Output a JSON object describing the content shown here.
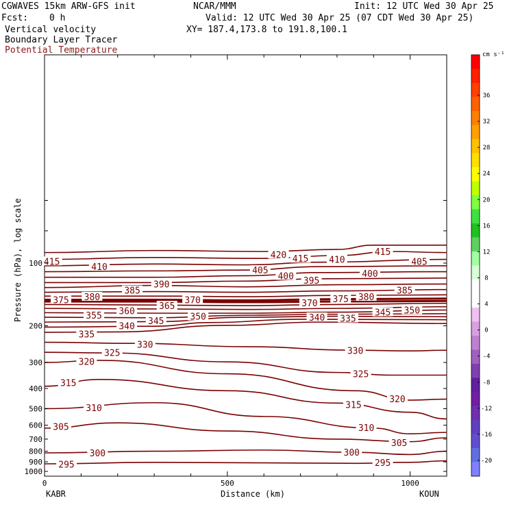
{
  "header": {
    "model": "CGWAVES 15km ARW-GFS init",
    "org": "NCAR/MMM",
    "init": "Init: 12 UTC Wed 30 Apr 25",
    "fcst_label": "Fcst:",
    "fcst_value": "0 h",
    "valid": "Valid: 12 UTC Wed 30 Apr 25 (07 CDT Wed 30 Apr 25)",
    "field1": "Vertical velocity",
    "xy": "XY= 187.4,173.8 to 191.8,100.1",
    "field2": "Boundary Layer Tracer",
    "field3": "Potential Temperature"
  },
  "colors": {
    "contour": "#7a0000",
    "field3_text": "#8b1a1a"
  },
  "chart_data": {
    "type": "contour",
    "xlabel": "Distance (km)",
    "ylabel": "Pressure (hPa), log scale",
    "x_ticks": [
      "0",
      "500",
      "1000"
    ],
    "x_tick_values": [
      0,
      500,
      1000
    ],
    "y_ticks": [
      "100",
      "200",
      "300",
      "400",
      "500",
      "600",
      "700",
      "800",
      "900",
      "1000"
    ],
    "y_tick_values": [
      100,
      200,
      300,
      400,
      500,
      600,
      700,
      800,
      900,
      1000
    ],
    "y_scale": "log",
    "xlim": [
      0,
      1100
    ],
    "left_station": "KABR",
    "right_station": "KOUN",
    "colorbar": {
      "unit": "cm s⁻¹",
      "labels": [
        "36",
        "32",
        "28",
        "24",
        "20",
        "16",
        "12",
        "8",
        "4",
        "0",
        "-4",
        "-8",
        "-12",
        "-16",
        "-20"
      ],
      "colors": [
        "#ff0000",
        "#ff2000",
        "#ff4000",
        "#ff6000",
        "#ff8000",
        "#ffa000",
        "#ffc000",
        "#ffe000",
        "#ffff00",
        "#c0ff00",
        "#80ff40",
        "#40e040",
        "#20c020",
        "#60d060",
        "#a0ffa0",
        "#d8ffd8",
        "#ffffff",
        "#ffffff",
        "#f0c0f0",
        "#d8a0e0",
        "#c080d0",
        "#a060c0",
        "#8040b0",
        "#6020a0",
        "#7020a0",
        "#7030b0",
        "#6040c0",
        "#6050d0",
        "#6070e0",
        "#8080ff"
      ]
    },
    "contour_levels": [
      "295",
      "300",
      "305",
      "310",
      "315",
      "320",
      "325",
      "330",
      "335",
      "340",
      "345",
      "350",
      "355",
      "360",
      "365",
      "370",
      "375",
      "380",
      "385",
      "390",
      "395",
      "400",
      "405",
      "410",
      "415",
      "420"
    ],
    "labels": [
      {
        "text": "415",
        "x": 20,
        "p": 98
      },
      {
        "text": "410",
        "x": 150,
        "p": 104
      },
      {
        "text": "420",
        "x": 640,
        "p": 91
      },
      {
        "text": "415",
        "x": 700,
        "p": 95
      },
      {
        "text": "410",
        "x": 800,
        "p": 96
      },
      {
        "text": "415",
        "x": 925,
        "p": 88
      },
      {
        "text": "405",
        "x": 590,
        "p": 108
      },
      {
        "text": "400",
        "x": 660,
        "p": 115
      },
      {
        "text": "395",
        "x": 730,
        "p": 121
      },
      {
        "text": "400",
        "x": 890,
        "p": 112
      },
      {
        "text": "405",
        "x": 1025,
        "p": 98
      },
      {
        "text": "390",
        "x": 320,
        "p": 126
      },
      {
        "text": "385",
        "x": 240,
        "p": 135
      },
      {
        "text": "385",
        "x": 985,
        "p": 135
      },
      {
        "text": "380",
        "x": 130,
        "p": 145
      },
      {
        "text": "380",
        "x": 880,
        "p": 145
      },
      {
        "text": "375",
        "x": 45,
        "p": 150
      },
      {
        "text": "370",
        "x": 405,
        "p": 150
      },
      {
        "text": "370",
        "x": 725,
        "p": 155
      },
      {
        "text": "375",
        "x": 810,
        "p": 148
      },
      {
        "text": "365",
        "x": 335,
        "p": 160
      },
      {
        "text": "360",
        "x": 225,
        "p": 169
      },
      {
        "text": "355",
        "x": 135,
        "p": 178
      },
      {
        "text": "350",
        "x": 420,
        "p": 180
      },
      {
        "text": "345",
        "x": 305,
        "p": 189
      },
      {
        "text": "345",
        "x": 925,
        "p": 172
      },
      {
        "text": "350",
        "x": 1005,
        "p": 168
      },
      {
        "text": "340",
        "x": 225,
        "p": 200
      },
      {
        "text": "340",
        "x": 745,
        "p": 182
      },
      {
        "text": "335",
        "x": 830,
        "p": 184
      },
      {
        "text": "335",
        "x": 115,
        "p": 219
      },
      {
        "text": "330",
        "x": 275,
        "p": 245
      },
      {
        "text": "330",
        "x": 850,
        "p": 263
      },
      {
        "text": "325",
        "x": 185,
        "p": 269
      },
      {
        "text": "325",
        "x": 865,
        "p": 340
      },
      {
        "text": "320",
        "x": 115,
        "p": 297
      },
      {
        "text": "320",
        "x": 965,
        "p": 448
      },
      {
        "text": "315",
        "x": 65,
        "p": 375
      },
      {
        "text": "315",
        "x": 845,
        "p": 478
      },
      {
        "text": "310",
        "x": 135,
        "p": 495
      },
      {
        "text": "310",
        "x": 880,
        "p": 617
      },
      {
        "text": "305",
        "x": 45,
        "p": 610
      },
      {
        "text": "305",
        "x": 970,
        "p": 727
      },
      {
        "text": "300",
        "x": 145,
        "p": 815
      },
      {
        "text": "300",
        "x": 840,
        "p": 810
      },
      {
        "text": "295",
        "x": 60,
        "p": 925
      },
      {
        "text": "295",
        "x": 925,
        "p": 905
      }
    ],
    "contours": [
      {
        "level": "420",
        "pts": [
          [
            0,
            89
          ],
          [
            300,
            87
          ],
          [
            600,
            88
          ],
          [
            800,
            86
          ],
          [
            900,
            82
          ],
          [
            1100,
            82
          ]
        ]
      },
      {
        "level": "415",
        "pts": [
          [
            0,
            96
          ],
          [
            300,
            94
          ],
          [
            600,
            95
          ],
          [
            800,
            92
          ],
          [
            950,
            88
          ],
          [
            1100,
            89
          ]
        ]
      },
      {
        "level": "410",
        "pts": [
          [
            0,
            103
          ],
          [
            300,
            101
          ],
          [
            550,
            102
          ],
          [
            750,
            99
          ],
          [
            1100,
            96
          ]
        ]
      },
      {
        "level": "405",
        "pts": [
          [
            0,
            110
          ],
          [
            300,
            109
          ],
          [
            550,
            108
          ],
          [
            750,
            104
          ],
          [
            1100,
            103
          ]
        ]
      },
      {
        "level": "400",
        "pts": [
          [
            0,
            117
          ],
          [
            300,
            117
          ],
          [
            550,
            115
          ],
          [
            750,
            111
          ],
          [
            1100,
            110
          ]
        ]
      },
      {
        "level": "395",
        "pts": [
          [
            0,
            124
          ],
          [
            300,
            124
          ],
          [
            550,
            122
          ],
          [
            750,
            119
          ],
          [
            1100,
            118
          ]
        ]
      },
      {
        "level": "390",
        "pts": [
          [
            0,
            131
          ],
          [
            300,
            128
          ],
          [
            550,
            130
          ],
          [
            800,
            127
          ],
          [
            1100,
            126
          ]
        ]
      },
      {
        "level": "385",
        "pts": [
          [
            0,
            138
          ],
          [
            300,
            137
          ],
          [
            550,
            138
          ],
          [
            800,
            136
          ],
          [
            1100,
            134
          ]
        ]
      },
      {
        "level": "380",
        "pts": [
          [
            0,
            144
          ],
          [
            300,
            144
          ],
          [
            550,
            145
          ],
          [
            800,
            143
          ],
          [
            1100,
            142
          ]
        ]
      },
      {
        "level": "375",
        "pts": [
          [
            0,
            150
          ],
          [
            300,
            150
          ],
          [
            550,
            151
          ],
          [
            800,
            149
          ],
          [
            1100,
            148
          ]
        ]
      },
      {
        "level": "370",
        "pts": [
          [
            0,
            153
          ],
          [
            300,
            153
          ],
          [
            550,
            154
          ],
          [
            800,
            153
          ],
          [
            1100,
            152
          ]
        ]
      },
      {
        "level": "365",
        "pts": [
          [
            0,
            158
          ],
          [
            300,
            159
          ],
          [
            550,
            160
          ],
          [
            800,
            158
          ],
          [
            1100,
            156
          ]
        ]
      },
      {
        "level": "360",
        "pts": [
          [
            0,
            165
          ],
          [
            300,
            166
          ],
          [
            550,
            167
          ],
          [
            800,
            165
          ],
          [
            1100,
            162
          ]
        ]
      },
      {
        "level": "355",
        "pts": [
          [
            0,
            173
          ],
          [
            300,
            174
          ],
          [
            550,
            174
          ],
          [
            800,
            172
          ],
          [
            1100,
            168
          ]
        ]
      },
      {
        "level": "350",
        "pts": [
          [
            0,
            182
          ],
          [
            300,
            183
          ],
          [
            550,
            178
          ],
          [
            800,
            176
          ],
          [
            1100,
            175
          ]
        ]
      },
      {
        "level": "345",
        "pts": [
          [
            0,
            192
          ],
          [
            300,
            191
          ],
          [
            550,
            182
          ],
          [
            800,
            180
          ],
          [
            1100,
            181
          ]
        ]
      },
      {
        "level": "340",
        "pts": [
          [
            0,
            203
          ],
          [
            300,
            201
          ],
          [
            450,
            193
          ],
          [
            700,
            186
          ],
          [
            1100,
            187
          ]
        ]
      },
      {
        "level": "335",
        "pts": [
          [
            0,
            215
          ],
          [
            200,
            214
          ],
          [
            500,
            199
          ],
          [
            750,
            192
          ],
          [
            1100,
            195
          ]
        ]
      },
      {
        "level": "330",
        "pts": [
          [
            0,
            240
          ],
          [
            250,
            243
          ],
          [
            550,
            252
          ],
          [
            850,
            262
          ],
          [
            1000,
            264
          ],
          [
            1100,
            262
          ]
        ]
      },
      {
        "level": "325",
        "pts": [
          [
            0,
            268
          ],
          [
            180,
            270
          ],
          [
            500,
            298
          ],
          [
            800,
            335
          ],
          [
            950,
            345
          ],
          [
            1100,
            345
          ]
        ]
      },
      {
        "level": "320",
        "pts": [
          [
            0,
            300
          ],
          [
            150,
            293
          ],
          [
            500,
            340
          ],
          [
            850,
            410
          ],
          [
            1000,
            455
          ],
          [
            1100,
            450
          ]
        ]
      },
      {
        "level": "315",
        "pts": [
          [
            0,
            390
          ],
          [
            150,
            362
          ],
          [
            500,
            410
          ],
          [
            800,
            470
          ],
          [
            1000,
            520
          ],
          [
            1100,
            560
          ]
        ]
      },
      {
        "level": "310",
        "pts": [
          [
            0,
            500
          ],
          [
            300,
            468
          ],
          [
            600,
            545
          ],
          [
            900,
            620
          ],
          [
            1000,
            660
          ],
          [
            1100,
            650
          ]
        ]
      },
      {
        "level": "305",
        "pts": [
          [
            0,
            620
          ],
          [
            200,
            585
          ],
          [
            500,
            640
          ],
          [
            800,
            700
          ],
          [
            1000,
            720
          ],
          [
            1100,
            690
          ]
        ]
      },
      {
        "level": "300",
        "pts": [
          [
            0,
            815
          ],
          [
            300,
            800
          ],
          [
            600,
            790
          ],
          [
            850,
            810
          ],
          [
            1000,
            830
          ],
          [
            1100,
            800
          ]
        ]
      },
      {
        "level": "295",
        "pts": [
          [
            0,
            920
          ],
          [
            300,
            905
          ],
          [
            600,
            910
          ],
          [
            850,
            915
          ],
          [
            1000,
            905
          ],
          [
            1100,
            890
          ]
        ]
      }
    ]
  }
}
